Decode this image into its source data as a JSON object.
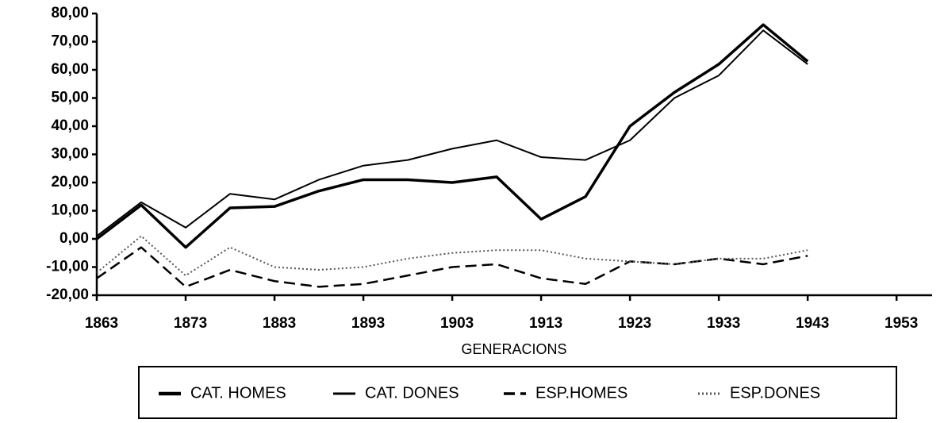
{
  "chart_data": {
    "type": "line",
    "x": [
      1863,
      1868,
      1873,
      1878,
      1883,
      1888,
      1893,
      1898,
      1903,
      1908,
      1913,
      1918,
      1923,
      1928,
      1933,
      1938,
      1943
    ],
    "series": [
      {
        "name": "CAT. HOMES",
        "color": "#000000",
        "line_style": "solid",
        "line_width": 3.5,
        "values": [
          0,
          12,
          -3,
          11,
          11.5,
          17,
          21,
          21,
          20,
          22,
          7,
          15,
          40,
          52,
          62,
          76,
          63
        ]
      },
      {
        "name": "CAT. DONES",
        "color": "#000000",
        "line_style": "solid",
        "line_width": 2,
        "values": [
          1,
          13,
          4,
          16,
          14,
          21,
          26,
          28,
          32,
          35,
          29,
          28,
          35,
          50,
          58,
          74,
          62
        ]
      },
      {
        "name": "ESP.HOMES",
        "color": "#000000",
        "line_style": "dashed",
        "line_width": 2.5,
        "values": [
          -14,
          -3,
          -17,
          -11,
          -15,
          -17,
          -16,
          -13,
          -10,
          -9,
          -14,
          -16,
          -8,
          -9,
          -7,
          -9,
          -6
        ]
      },
      {
        "name": "ESP.DONES",
        "color": "#555555",
        "line_style": "dotted",
        "line_width": 2,
        "values": [
          -12,
          1,
          -13,
          -3,
          -10,
          -11,
          -10,
          -7,
          -5,
          -4,
          -4,
          -7,
          -8,
          -9,
          -7,
          -7,
          -4
        ]
      }
    ],
    "x_label": "GENERACIONS",
    "xlim": [
      1863,
      1957
    ],
    "xticks": [
      1863,
      1873,
      1883,
      1893,
      1903,
      1913,
      1923,
      1933,
      1943,
      1953
    ],
    "ylim": [
      -20,
      80
    ],
    "yticks": [
      {
        "value": -20,
        "label": "-20,00"
      },
      {
        "value": -10,
        "label": "-10,00"
      },
      {
        "value": 0,
        "label": "0,00"
      },
      {
        "value": 10,
        "label": "10,00"
      },
      {
        "value": 20,
        "label": "20,00"
      },
      {
        "value": 30,
        "label": "30,00"
      },
      {
        "value": 40,
        "label": "40,00"
      },
      {
        "value": 50,
        "label": "50,00"
      },
      {
        "value": 60,
        "label": "60,00"
      },
      {
        "value": 70,
        "label": "70,00"
      },
      {
        "value": 80,
        "label": "80,00"
      }
    ],
    "legend": "bottom"
  }
}
